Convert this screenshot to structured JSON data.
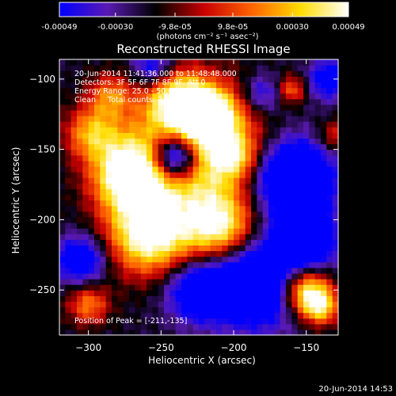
{
  "colorbar": {
    "ticks": [
      "-0.00049",
      "-0.00030",
      "-9.8e-05",
      "9.8e-05",
      "0.00030",
      "0.00049"
    ],
    "tick_values": [
      -0.00049,
      -0.0003,
      -9.8e-05,
      9.8e-05,
      0.0003,
      0.00049
    ],
    "range": [
      -0.00049,
      0.00049
    ],
    "units_label": "(photons cm⁻² s⁻¹ asec⁻²)",
    "stops": [
      "#0000ff",
      "#5a1ab4",
      "#000000",
      "#c80000",
      "#ff6400",
      "#ffdc00",
      "#ffffff"
    ]
  },
  "chart_data": {
    "type": "heatmap",
    "title": "Reconstructed RHESSI Image",
    "xlabel": "Heliocentric X (arcsec)",
    "ylabel": "Heliocentric Y (arcsec)",
    "xlim": [
      -320,
      -128
    ],
    "ylim": [
      -282,
      -86
    ],
    "x_ticks": [
      -300,
      -250,
      -200,
      -150
    ],
    "y_ticks": [
      -100,
      -150,
      -200,
      -250
    ],
    "grid": false,
    "annotations": [
      "20-Jun-2014 11:41:36.000 to 11:48:48.000",
      "Detectors: 3F 5F 6F 7F 8F 9F, Att 0",
      "Energy Range: 25.0 - 50.0 keV",
      "Clean     Total counts: 2.66E+04",
      "Position of Peak = [-211,-135]"
    ],
    "peak": {
      "x": -211,
      "y": -135
    },
    "sources": [
      {
        "x": -225,
        "y": -148,
        "amp": 1.0,
        "sigma": 30
      },
      {
        "x": -272,
        "y": -168,
        "amp": 0.95,
        "sigma": 18
      },
      {
        "x": -258,
        "y": -210,
        "amp": 0.95,
        "sigma": 20
      },
      {
        "x": -210,
        "y": -205,
        "amp": 0.8,
        "sigma": 17
      },
      {
        "x": -298,
        "y": -138,
        "amp": 0.55,
        "sigma": 13
      },
      {
        "x": -285,
        "y": -112,
        "amp": 0.45,
        "sigma": 11
      },
      {
        "x": -240,
        "y": -113,
        "amp": 0.6,
        "sigma": 14
      },
      {
        "x": -218,
        "y": -125,
        "amp": 0.8,
        "sigma": 12
      },
      {
        "x": -198,
        "y": -155,
        "amp": 0.35,
        "sigma": 10
      },
      {
        "x": -300,
        "y": -260,
        "amp": 0.5,
        "sigma": 10
      },
      {
        "x": -150,
        "y": -250,
        "amp": 0.9,
        "sigma": 12
      },
      {
        "x": -140,
        "y": -262,
        "amp": 0.6,
        "sigma": 9
      },
      {
        "x": -160,
        "y": -107,
        "amp": 0.45,
        "sigma": 7
      },
      {
        "x": -131,
        "y": -140,
        "amp": 0.35,
        "sigma": 8
      },
      {
        "x": -240,
        "y": -155,
        "amp": -1.3,
        "sigma": 12
      },
      {
        "x": -185,
        "y": -245,
        "amp": -0.8,
        "sigma": 22
      },
      {
        "x": -225,
        "y": -250,
        "amp": -0.6,
        "sigma": 15
      },
      {
        "x": -160,
        "y": -170,
        "amp": -0.9,
        "sigma": 20
      },
      {
        "x": -150,
        "y": -215,
        "amp": -0.7,
        "sigma": 15
      },
      {
        "x": -305,
        "y": -228,
        "amp": -0.6,
        "sigma": 12
      },
      {
        "x": -255,
        "y": -92,
        "amp": -0.5,
        "sigma": 10
      },
      {
        "x": -135,
        "y": -100,
        "amp": -0.5,
        "sigma": 10
      },
      {
        "x": -180,
        "y": -110,
        "amp": -0.4,
        "sigma": 10
      }
    ]
  },
  "footer": {
    "timestamp": "20-Jun-2014 14:53"
  }
}
